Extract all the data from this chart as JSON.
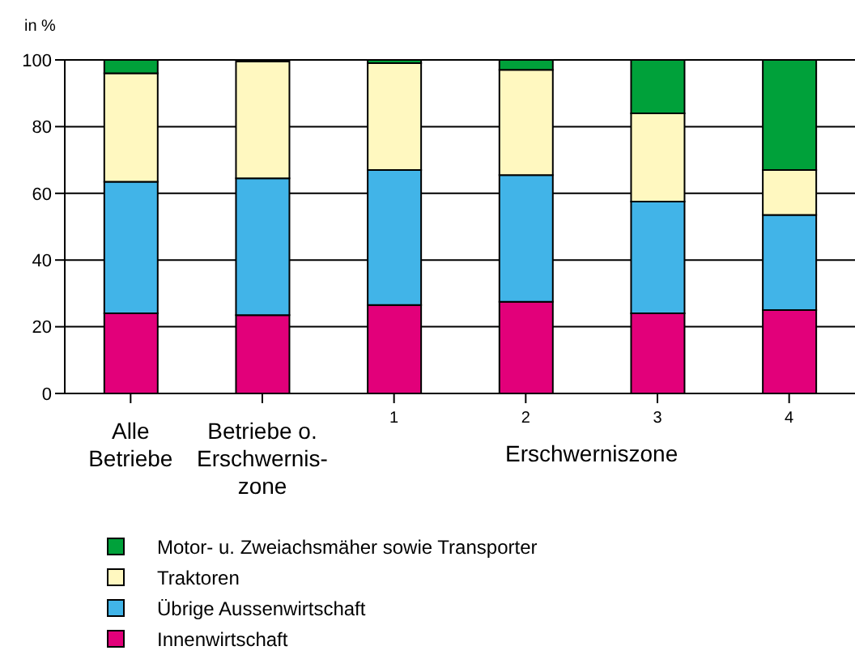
{
  "chart_data": {
    "type": "bar",
    "stacked": true,
    "ylabel": "in %",
    "xlabel": "Erschwerniszone",
    "categories": [
      "Alle\nBetriebe",
      "Betriebe o.\nErschwernis-\nzone",
      "1",
      "2",
      "3",
      "4"
    ],
    "series": [
      {
        "name": "Innenwirtschaft",
        "color": "#e2007a",
        "values": [
          24,
          23.5,
          26.5,
          27.5,
          24,
          25
        ]
      },
      {
        "name": "Übrige Aussenwirtschaft",
        "color": "#41b4e8",
        "values": [
          39.5,
          41,
          40.5,
          38,
          33.5,
          28.5
        ]
      },
      {
        "name": "Traktoren",
        "color": "#fff8c0",
        "values": [
          32.5,
          35,
          32,
          31.5,
          26.5,
          13.5
        ]
      },
      {
        "name": "Motor- u. Zweiachsmäher sowie Transporter",
        "color": "#00a13a",
        "values": [
          4,
          null,
          1,
          3,
          16,
          33
        ]
      }
    ],
    "ylim": [
      0,
      100
    ],
    "yticks": [
      0,
      20,
      40,
      60,
      80,
      100
    ],
    "grid": "y",
    "legend": "bottom"
  }
}
